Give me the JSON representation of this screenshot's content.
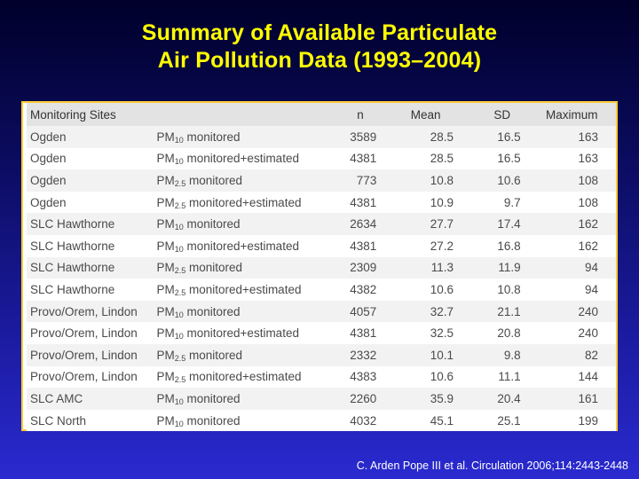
{
  "slide": {
    "title_line1": "Summary of Available Particulate",
    "title_line2": "Air Pollution Data (1993–2004)",
    "citation": "C. Arden Pope III et al. Circulation 2006;114:2443-2448"
  },
  "table": {
    "headers": {
      "site": "Monitoring Sites",
      "n": "n",
      "mean": "Mean",
      "sd": "SD",
      "max": "Maximum"
    },
    "rows": [
      {
        "site": "Ogden",
        "pm": "PM",
        "sub": "10",
        "desc": " monitored",
        "n": "3589",
        "mean": "28.5",
        "sd": "16.5",
        "max": "163"
      },
      {
        "site": "Ogden",
        "pm": "PM",
        "sub": "10",
        "desc": " monitored+estimated",
        "n": "4381",
        "mean": "28.5",
        "sd": "16.5",
        "max": "163"
      },
      {
        "site": "Ogden",
        "pm": "PM",
        "sub": "2.5",
        "desc": " monitored",
        "n": "773",
        "mean": "10.8",
        "sd": "10.6",
        "max": "108"
      },
      {
        "site": "Ogden",
        "pm": "PM",
        "sub": "2.5",
        "desc": " monitored+estimated",
        "n": "4381",
        "mean": "10.9",
        "sd": "9.7",
        "max": "108"
      },
      {
        "site": "SLC Hawthorne",
        "pm": "PM",
        "sub": "10",
        "desc": " monitored",
        "n": "2634",
        "mean": "27.7",
        "sd": "17.4",
        "max": "162"
      },
      {
        "site": "SLC Hawthorne",
        "pm": "PM",
        "sub": "10",
        "desc": " monitored+estimated",
        "n": "4381",
        "mean": "27.2",
        "sd": "16.8",
        "max": "162"
      },
      {
        "site": "SLC Hawthorne",
        "pm": "PM",
        "sub": "2.5",
        "desc": " monitored",
        "n": "2309",
        "mean": "11.3",
        "sd": "11.9",
        "max": "94"
      },
      {
        "site": "SLC Hawthorne",
        "pm": "PM",
        "sub": "2.5",
        "desc": " monitored+estimated",
        "n": "4382",
        "mean": "10.6",
        "sd": "10.8",
        "max": "94"
      },
      {
        "site": "Provo/Orem, Lindon",
        "pm": "PM",
        "sub": "10",
        "desc": " monitored",
        "n": "4057",
        "mean": "32.7",
        "sd": "21.1",
        "max": "240"
      },
      {
        "site": "Provo/Orem, Lindon",
        "pm": "PM",
        "sub": "10",
        "desc": " monitored+estimated",
        "n": "4381",
        "mean": "32.5",
        "sd": "20.8",
        "max": "240"
      },
      {
        "site": "Provo/Orem, Lindon",
        "pm": "PM",
        "sub": "2.5",
        "desc": " monitored",
        "n": "2332",
        "mean": "10.1",
        "sd": "9.8",
        "max": "82"
      },
      {
        "site": "Provo/Orem, Lindon",
        "pm": "PM",
        "sub": "2.5",
        "desc": " monitored+estimated",
        "n": "4383",
        "mean": "10.6",
        "sd": "11.1",
        "max": "144"
      },
      {
        "site": "SLC AMC",
        "pm": "PM",
        "sub": "10",
        "desc": " monitored",
        "n": "2260",
        "mean": "35.9",
        "sd": "20.4",
        "max": "161"
      },
      {
        "site": "SLC North",
        "pm": "PM",
        "sub": "10",
        "desc": " monitored",
        "n": "4032",
        "mean": "45.1",
        "sd": "25.1",
        "max": "199"
      }
    ]
  },
  "colors": {
    "title": "#ffff00",
    "panel_border": "#ffcc33",
    "background_top": "#00002a",
    "background_bottom": "#2a2ad0"
  }
}
